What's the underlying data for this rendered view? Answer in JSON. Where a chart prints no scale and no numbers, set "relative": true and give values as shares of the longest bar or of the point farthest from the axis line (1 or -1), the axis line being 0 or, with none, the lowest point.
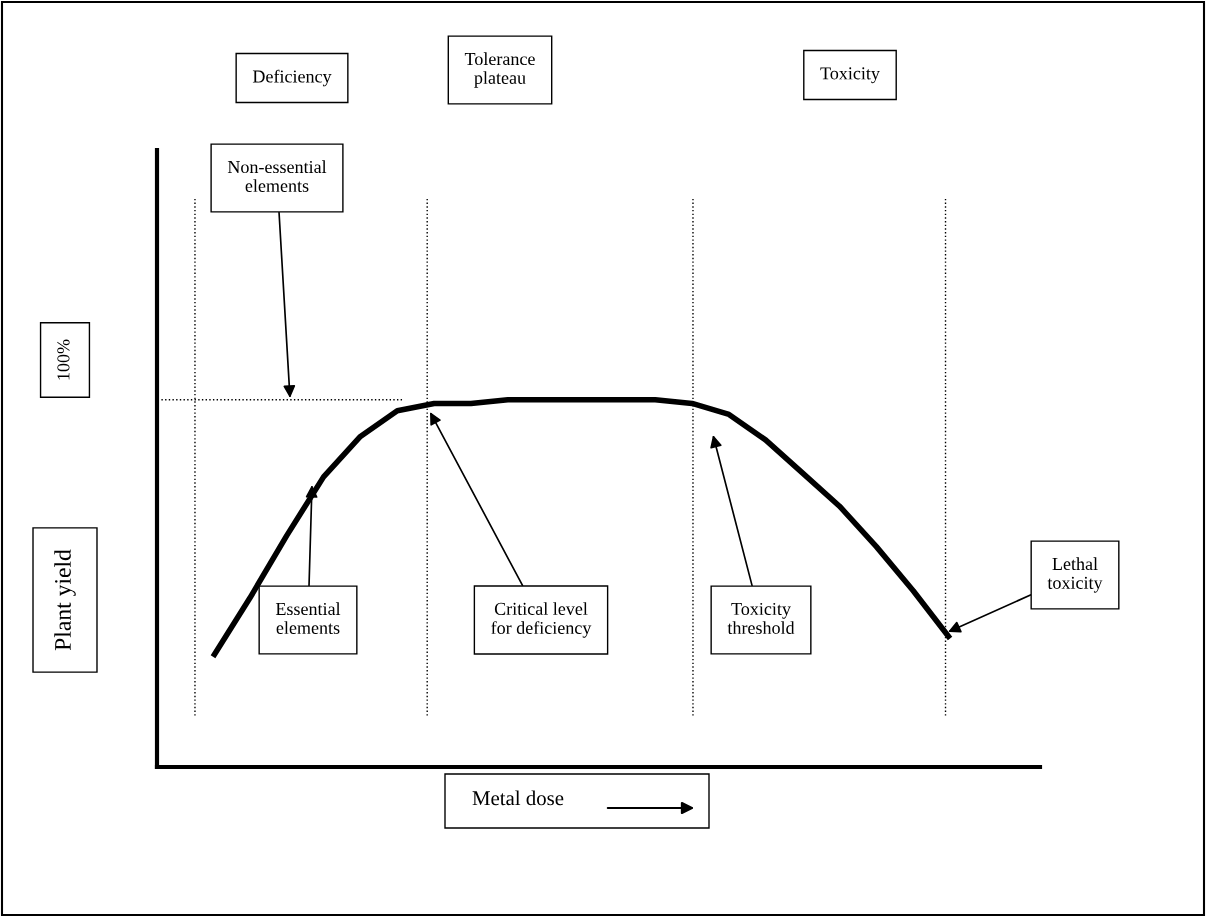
{
  "chart_data": {
    "type": "line",
    "relative": true,
    "xlabel": "Metal dose",
    "categories": [
      null,
      null,
      null,
      null,
      null,
      null,
      null,
      null,
      null,
      null,
      null,
      null,
      null,
      null,
      null,
      null,
      null,
      null,
      null,
      null,
      null
    ],
    "series": [
      {
        "color": "#000000",
        "line_style": "solid",
        "values": [
          0.3,
          0.46,
          0.63,
          0.79,
          0.9,
          0.97,
          0.99,
          0.99,
          1.0,
          1.0,
          1.0,
          1.0,
          1.0,
          0.99,
          0.96,
          0.89,
          0.8,
          0.71,
          0.6,
          0.48,
          0.35
        ]
      }
    ],
    "ref_lines": [
      {
        "axis": "y",
        "value": 1.0,
        "line_style": "dotted",
        "color": "#000000"
      }
    ],
    "annotations": [
      "Deficiency",
      "Tolerance\nplateau",
      "Toxicity",
      "100%",
      "Non-essential\nelements",
      "Essential\nelements",
      "Critical level\nfor deficiency",
      "Toxicity\nthreshold",
      "Lethal\ntoxicity",
      "Plant yield"
    ]
  }
}
